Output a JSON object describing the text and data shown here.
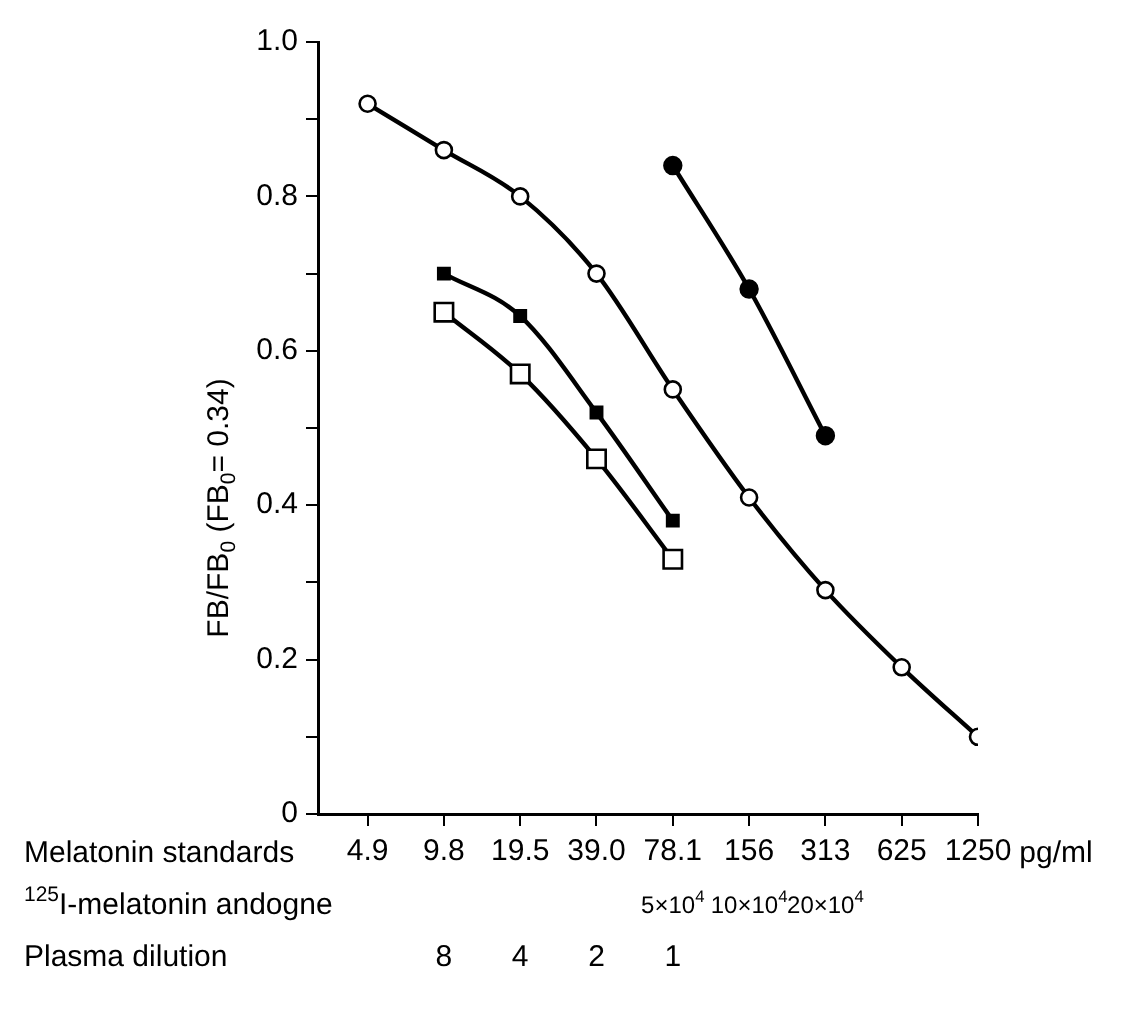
{
  "chart_data": {
    "type": "line",
    "ylabel": "FB/FB$_{0}$ (FB$_{0}$= 0.34)",
    "xlabel": "pg/ml",
    "categories": [
      "4.9",
      "9.8",
      "19.5",
      "39.0",
      "78.1",
      "156",
      "313",
      "625",
      "1250"
    ],
    "series": [
      {
        "color": "#000000",
        "marker": "circle",
        "values": [
          0.92,
          0.86,
          0.8,
          0.7,
          0.55,
          0.41,
          0.29,
          0.19,
          0.1
        ]
      },
      {
        "color": "#000000",
        "marker": "circle",
        "values": [
          null,
          null,
          null,
          null,
          0.84,
          0.68,
          0.49,
          null,
          null
        ]
      },
      {
        "color": "#000000",
        "marker": "square",
        "values": [
          null,
          0.7,
          0.645,
          0.52,
          0.38,
          null,
          null,
          null,
          null
        ]
      },
      {
        "color": "#000000",
        "marker": "square",
        "values": [
          null,
          0.65,
          0.57,
          0.46,
          0.33,
          null,
          null,
          null,
          null
        ]
      }
    ],
    "ylim": [
      0,
      1.0
    ],
    "yticks": [
      0,
      {
        "value": 0.1,
        "label": null
      },
      0.2,
      {
        "value": 0.3,
        "label": null
      },
      0.4,
      {
        "value": 0.5,
        "label": null
      },
      0.6,
      {
        "value": 0.7,
        "label": null
      },
      0.8,
      {
        "value": 0.9,
        "label": null
      },
      {
        "value": 1.0,
        "label": "1.0"
      }
    ],
    "annotations": [
      "Melatonin standards",
      "$^{125}$I-melatonin andogne",
      "5×10$^{4}$",
      "10×10$^{4}$",
      "20×10$^{4}$",
      "Plasma dilution",
      "8",
      "4",
      "2",
      "1"
    ],
    "legend": false,
    "grid": false,
    "line_style": "solid"
  }
}
